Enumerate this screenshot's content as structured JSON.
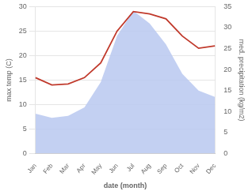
{
  "chart_data": {
    "type": "line",
    "categories": [
      "Jan",
      "Feb",
      "Mar",
      "Apr",
      "May",
      "Jun",
      "Jul",
      "Aug",
      "Sep",
      "Oct",
      "Nov",
      "Dec"
    ],
    "xlabel": "date (month)",
    "ylabel": "max temp (C)",
    "y2label": "med. precipitation (kg/m2)",
    "series": [
      {
        "type": "area",
        "axis": "y2",
        "color": "#b8c8f0",
        "values": [
          9.5,
          8.5,
          9.0,
          11.0,
          17.0,
          28.0,
          34.0,
          31.0,
          26.0,
          19.0,
          15.0,
          13.5
        ]
      },
      {
        "type": "line",
        "color": "#c0392b",
        "values": [
          15.5,
          14.0,
          14.2,
          15.5,
          18.5,
          25.0,
          29.0,
          28.5,
          27.5,
          24.0,
          21.5,
          22.0
        ]
      }
    ],
    "ylim": [
      0,
      30
    ],
    "yticks": [
      0,
      5,
      10,
      15,
      20,
      25,
      30
    ],
    "y2lim": [
      0,
      35
    ],
    "y2ticks": [
      0,
      5,
      10,
      15,
      20,
      25,
      30,
      35
    ],
    "grid": true
  }
}
